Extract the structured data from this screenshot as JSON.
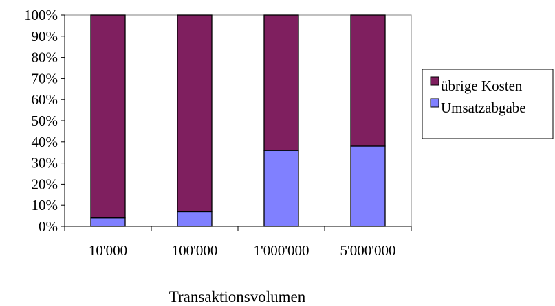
{
  "chart_data": {
    "type": "bar",
    "stacked": true,
    "categories": [
      "10'000",
      "100'000",
      "1'000'000",
      "5'000'000"
    ],
    "series": [
      {
        "name": "Umsatzabgabe",
        "color": "#8080FF",
        "values": [
          4,
          7,
          36,
          38
        ]
      },
      {
        "name": "übrige Kosten",
        "color": "#7F1F5F",
        "values": [
          96,
          93,
          64,
          62
        ]
      }
    ],
    "xlabel": "Transaktionsvolumen",
    "ylabel": "",
    "ylim": [
      0,
      100
    ],
    "y_ticks": [
      "0%",
      "10%",
      "20%",
      "30%",
      "40%",
      "50%",
      "60%",
      "70%",
      "80%",
      "90%",
      "100%"
    ],
    "legend": {
      "placement": "right",
      "entries": [
        {
          "label": "übrige Kosten",
          "color": "#7F1F5F"
        },
        {
          "label": "Umsatzabgabe",
          "color": "#8080FF"
        }
      ]
    },
    "grid": false
  }
}
